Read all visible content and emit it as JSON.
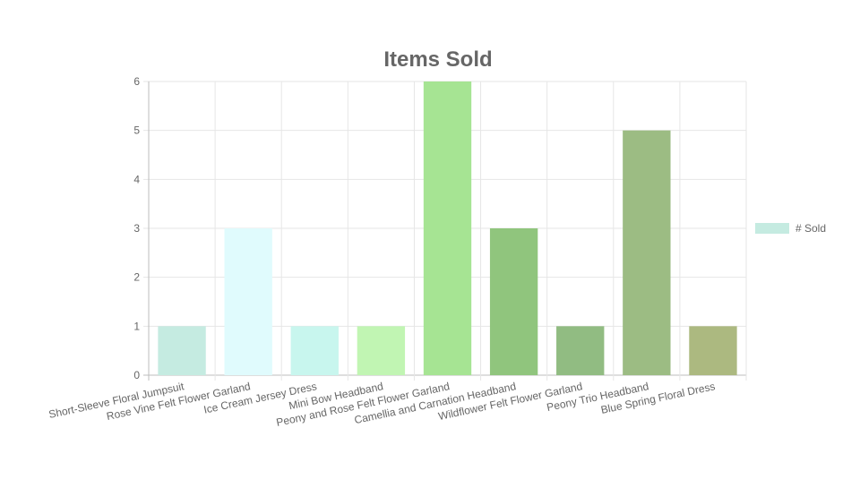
{
  "chart_data": {
    "type": "bar",
    "title": "Items Sold",
    "xlabel": "",
    "ylabel": "",
    "ylim": [
      0,
      6
    ],
    "yticks": [
      0,
      1,
      2,
      3,
      4,
      5,
      6
    ],
    "grid": true,
    "legend_position": "right",
    "categories": [
      "Short-Sleeve Floral Jumpsuit",
      "Rose Vine Felt Flower Garland",
      "Ice Cream Jersey Dress",
      "Mini Bow Headband",
      "Peony and Rose Felt Flower Garland",
      "Camellia and Carnation Headband",
      "Wildflower Felt Flower Garland",
      "Peony Trio Headband",
      "Blue Spring Floral Dress"
    ],
    "series": [
      {
        "name": "# Sold",
        "values": [
          1,
          3,
          1,
          1,
          6,
          3,
          1,
          5,
          1
        ],
        "colors": [
          "#c5ebe1",
          "#e0fbfd",
          "#c8f6ee",
          "#c1f5b3",
          "#a6e493",
          "#90c57d",
          "#91bc82",
          "#9cbc83",
          "#acb980"
        ]
      }
    ]
  }
}
